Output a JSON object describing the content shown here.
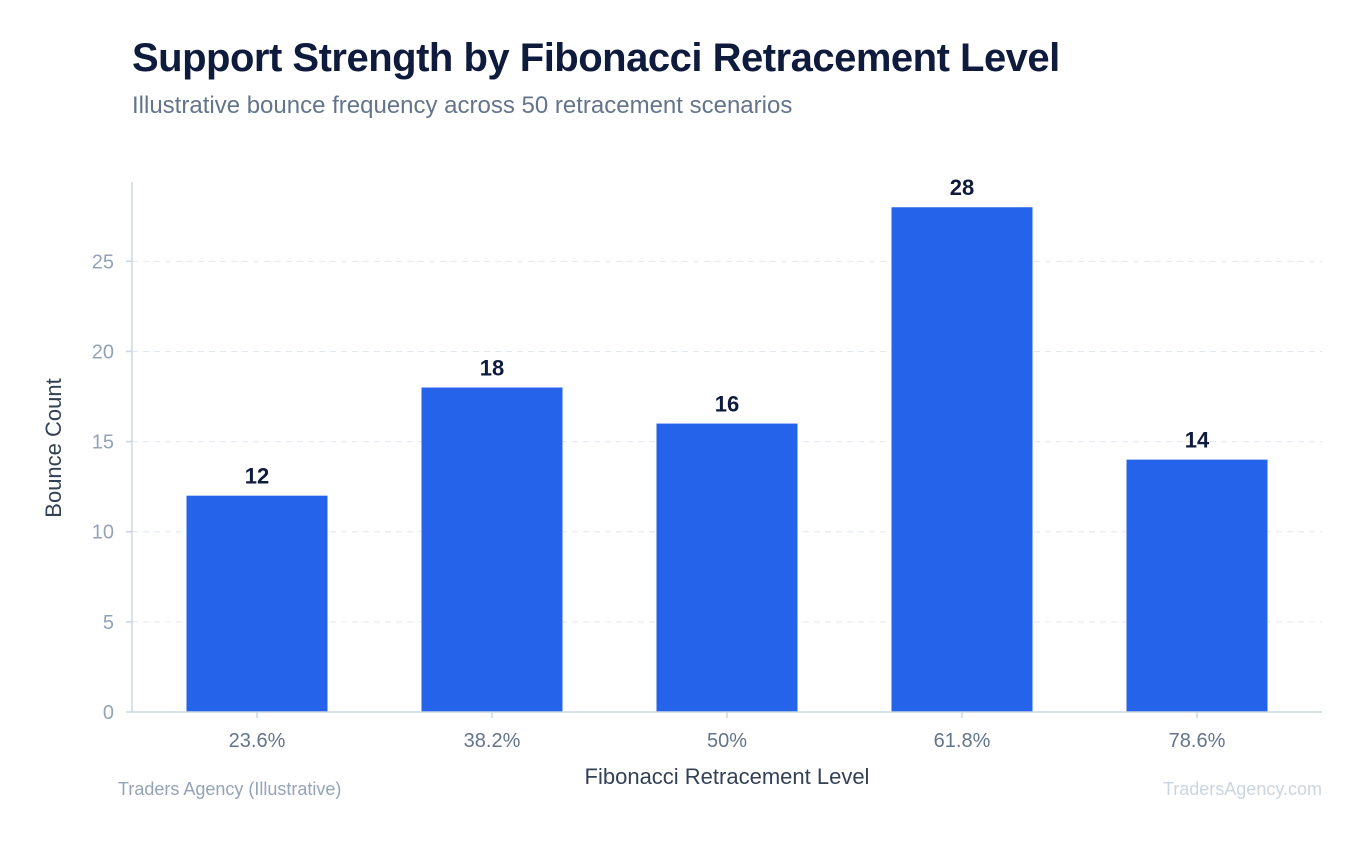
{
  "header": {
    "title": "Support Strength by Fibonacci Retracement Level",
    "subtitle": "Illustrative bounce frequency across 50 retracement scenarios"
  },
  "footer": {
    "source": "Traders Agency (Illustrative)",
    "watermark": "TradersAgency.com"
  },
  "colors": {
    "bar": "#2563eb",
    "axis": "#cbd5e1",
    "grid": "#e2e8f0"
  },
  "chart_data": {
    "type": "bar",
    "title": "Support Strength by Fibonacci Retracement Level",
    "subtitle": "Illustrative bounce frequency across 50 retracement scenarios",
    "xlabel": "Fibonacci Retracement Level",
    "ylabel": "Bounce Count",
    "categories": [
      "23.6%",
      "38.2%",
      "50%",
      "61.8%",
      "78.6%"
    ],
    "values": [
      12,
      18,
      16,
      28,
      14
    ],
    "ylim": [
      0,
      29.4
    ],
    "yticks": [
      0,
      5,
      10,
      15,
      20,
      25
    ],
    "grid": true,
    "legend": "none",
    "data_labels": true
  }
}
